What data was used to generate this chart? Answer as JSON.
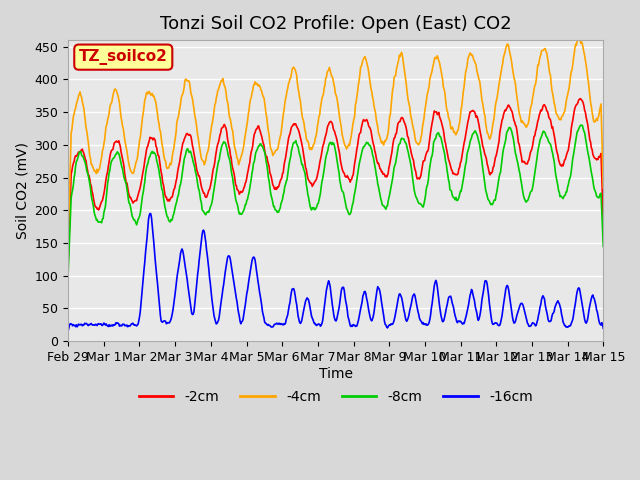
{
  "title": "Tonzi Soil CO2 Profile: Open (East) CO2",
  "ylabel": "Soil CO2 (mV)",
  "xlabel": "Time",
  "legend_label": "TZ_soilco2",
  "series_labels": [
    "-2cm",
    "-4cm",
    "-8cm",
    "-16cm"
  ],
  "series_colors": [
    "#ff0000",
    "#ffa500",
    "#00cc00",
    "#0000ff"
  ],
  "ylim": [
    0,
    460
  ],
  "yticks": [
    0,
    50,
    100,
    150,
    200,
    250,
    300,
    350,
    400,
    450
  ],
  "xtick_labels": [
    "Feb 29",
    "Mar 1",
    "Mar 2",
    "Mar 3",
    "Mar 4",
    "Mar 5",
    "Mar 6",
    "Mar 7",
    "Mar 8",
    "Mar 9",
    "Mar 10",
    "Mar 11",
    "Mar 12",
    "Mar 13",
    "Mar 14",
    "Mar 15"
  ],
  "background_color": "#e8e8e8",
  "plot_bg_color": "#e8e8e8",
  "grid_color": "#ffffff",
  "box_color": "#ffff99",
  "box_text_color": "#cc0000",
  "title_fontsize": 13,
  "axis_fontsize": 10,
  "tick_fontsize": 9,
  "legend_fontsize": 10
}
